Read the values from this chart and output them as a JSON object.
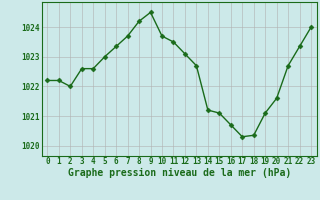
{
  "x": [
    0,
    1,
    2,
    3,
    4,
    5,
    6,
    7,
    8,
    9,
    10,
    11,
    12,
    13,
    14,
    15,
    16,
    17,
    18,
    19,
    20,
    21,
    22,
    23
  ],
  "y": [
    1022.2,
    1022.2,
    1022.0,
    1022.6,
    1022.6,
    1023.0,
    1023.35,
    1023.7,
    1024.2,
    1024.5,
    1023.7,
    1023.5,
    1023.1,
    1022.7,
    1021.2,
    1021.1,
    1020.7,
    1020.3,
    1020.35,
    1021.1,
    1021.6,
    1022.7,
    1023.35,
    1024.0
  ],
  "line_color": "#1a6b1a",
  "marker": "D",
  "marker_size": 2.5,
  "line_width": 1.0,
  "bg_color": "#cce9e9",
  "plot_bg_color": "#cce9e9",
  "grid_color": "#b0b0b0",
  "yticks": [
    1020,
    1021,
    1022,
    1023,
    1024
  ],
  "ylim": [
    1019.65,
    1024.85
  ],
  "xlim": [
    -0.5,
    23.5
  ],
  "xticks": [
    0,
    1,
    2,
    3,
    4,
    5,
    6,
    7,
    8,
    9,
    10,
    11,
    12,
    13,
    14,
    15,
    16,
    17,
    18,
    19,
    20,
    21,
    22,
    23
  ],
  "xlabel": "Graphe pression niveau de la mer (hPa)",
  "xlabel_fontsize": 7,
  "tick_fontsize": 5.5,
  "axis_label_color": "#1a6b1a",
  "tick_color": "#1a6b1a"
}
